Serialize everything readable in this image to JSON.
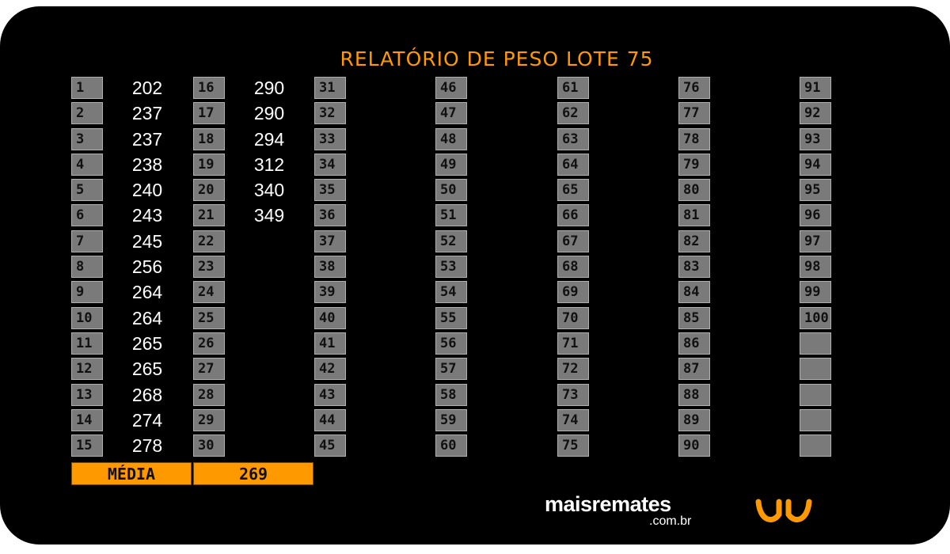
{
  "title": "RELATÓRIO DE PESO LOTE  75",
  "columns": [
    {
      "numbers": [
        "1",
        "2",
        "3",
        "4",
        "5",
        "6",
        "7",
        "8",
        "9",
        "10",
        "11",
        "12",
        "13",
        "14",
        "15"
      ],
      "weights": [
        "202",
        "237",
        "237",
        "238",
        "240",
        "243",
        "245",
        "256",
        "264",
        "264",
        "265",
        "265",
        "268",
        "274",
        "278"
      ]
    },
    {
      "numbers": [
        "16",
        "17",
        "18",
        "19",
        "20",
        "21",
        "22",
        "23",
        "24",
        "25",
        "26",
        "27",
        "28",
        "29",
        "30"
      ],
      "weights": [
        "290",
        "290",
        "294",
        "312",
        "340",
        "349",
        "",
        "",
        "",
        "",
        "",
        "",
        "",
        "",
        ""
      ]
    },
    {
      "numbers": [
        "31",
        "32",
        "33",
        "34",
        "35",
        "36",
        "37",
        "38",
        "39",
        "40",
        "41",
        "42",
        "43",
        "44",
        "45"
      ],
      "weights": []
    },
    {
      "numbers": [
        "46",
        "47",
        "48",
        "49",
        "50",
        "51",
        "52",
        "53",
        "54",
        "55",
        "56",
        "57",
        "58",
        "59",
        "60"
      ],
      "weights": []
    },
    {
      "numbers": [
        "61",
        "62",
        "63",
        "64",
        "65",
        "66",
        "67",
        "68",
        "69",
        "70",
        "71",
        "72",
        "73",
        "74",
        "75"
      ],
      "weights": []
    },
    {
      "numbers": [
        "76",
        "77",
        "78",
        "79",
        "80",
        "81",
        "82",
        "83",
        "84",
        "85",
        "86",
        "87",
        "88",
        "89",
        "90"
      ],
      "weights": []
    },
    {
      "numbers": [
        "91",
        "92",
        "93",
        "94",
        "95",
        "96",
        "97",
        "98",
        "99",
        "100",
        "",
        "",
        "",
        "",
        ""
      ],
      "weights": []
    }
  ],
  "media": {
    "label": "MÉDIA",
    "value": "269"
  },
  "brand": {
    "name": "maisremates",
    "domain": ".com.br"
  },
  "colors": {
    "accent": "#ff9900",
    "cell": "#7a7a7a",
    "background": "#000000"
  },
  "icons": {
    "logo": "maisremates-logo-icon"
  }
}
